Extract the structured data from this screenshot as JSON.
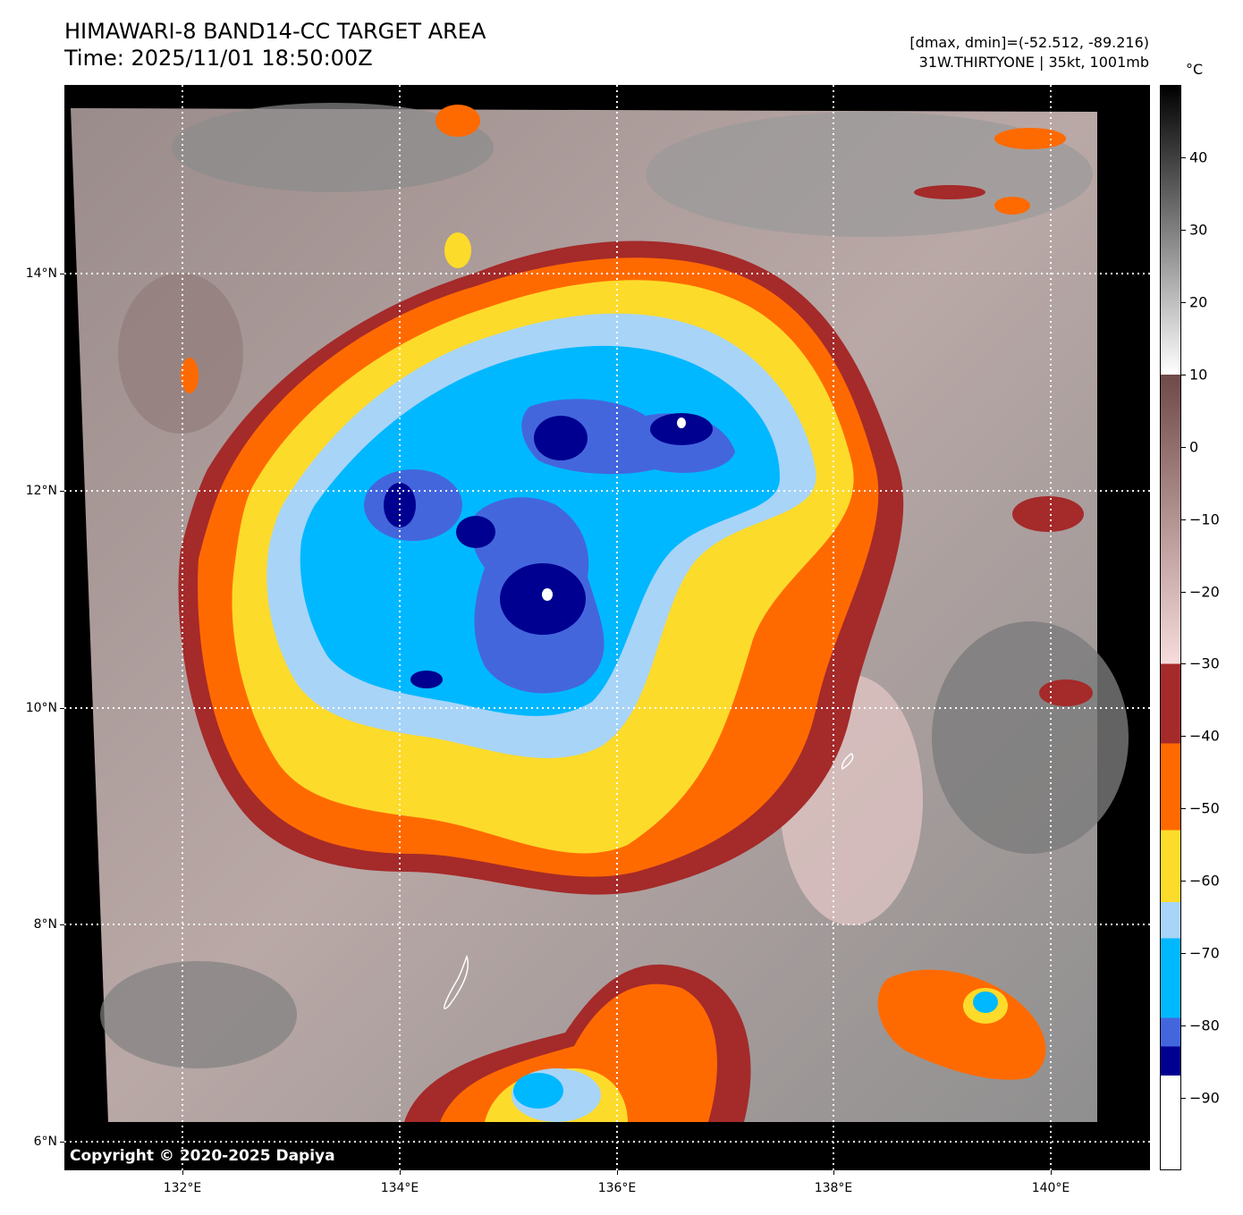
{
  "header": {
    "title_line1": "HIMAWARI-8 BAND14-CC TARGET AREA",
    "title_line2": "Time: 2025/11/01 18:50:00Z",
    "info_line1": "[dmax, dmin]=(-52.512, -89.216)",
    "info_line2": "31W.THIRTYONE | 35kt, 1001mb"
  },
  "map": {
    "copyright": "Copyright © 2020-2025 Dapiya",
    "lat_labels": [
      "14°N",
      "12°N",
      "10°N",
      "8°N",
      "6°N"
    ],
    "lon_labels": [
      "132°E",
      "134°E",
      "136°E",
      "138°E",
      "140°E"
    ],
    "storm_center": {
      "lat": 11.0,
      "lon": 135.3
    },
    "gridlines": "dotted white"
  },
  "colorbar": {
    "unit": "°C",
    "labels": [
      "40",
      "30",
      "20",
      "10",
      "0",
      "−10",
      "−20",
      "−30",
      "−40",
      "−50",
      "−60",
      "−70",
      "−80",
      "−90"
    ],
    "bands": [
      {
        "from": 50,
        "to": 10,
        "colors": [
          "#000000",
          "#ffffff"
        ]
      },
      {
        "from": 10,
        "to": -30,
        "colors": [
          "#6e4a48",
          "#f6dcdc"
        ]
      },
      {
        "from": -30,
        "to": -41,
        "color": "#a52a2a"
      },
      {
        "from": -41,
        "to": -53,
        "color": "#ff6a00"
      },
      {
        "from": -53,
        "to": -63,
        "color": "#fddb2b"
      },
      {
        "from": -63,
        "to": -68,
        "color": "#a8d4f7"
      },
      {
        "from": -68,
        "to": -79,
        "color": "#00b8ff"
      },
      {
        "from": -79,
        "to": -83,
        "color": "#4466dd"
      },
      {
        "from": -83,
        "to": -87,
        "color": "#000090"
      },
      {
        "from": -87,
        "to": -100,
        "color": "#ffffff"
      }
    ]
  }
}
